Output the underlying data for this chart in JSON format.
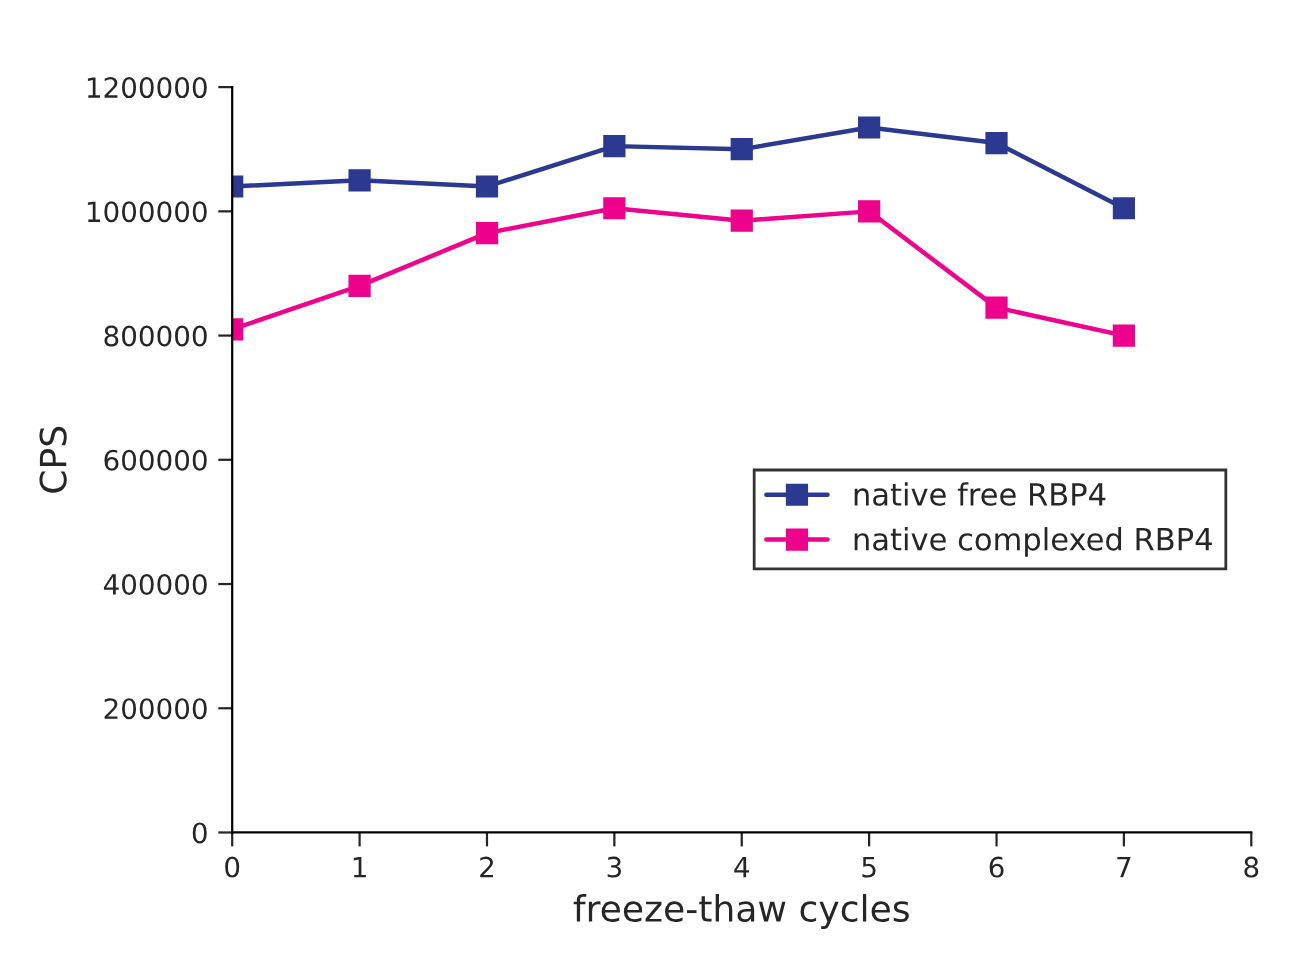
{
  "chart_data": {
    "type": "line",
    "xlabel": "freeze-thaw cycles",
    "ylabel": "CPS",
    "x": [
      0,
      1,
      2,
      3,
      4,
      5,
      6,
      7
    ],
    "series": [
      {
        "name": "native free RBP4",
        "color": "#2b3990",
        "values": [
          1040000,
          1050000,
          1040000,
          1105000,
          1100000,
          1135000,
          1110000,
          1005000
        ]
      },
      {
        "name": "native complexed RBP4",
        "color": "#ec008c",
        "values": [
          810000,
          880000,
          965000,
          1005000,
          985000,
          1000000,
          845000,
          800000
        ]
      }
    ],
    "xlim": [
      0,
      8
    ],
    "xticks": [
      0,
      1,
      2,
      3,
      4,
      5,
      6,
      7,
      8
    ],
    "ylim": [
      0,
      1200000
    ],
    "yticks": [
      0,
      200000,
      400000,
      600000,
      800000,
      1000000,
      1200000
    ],
    "marker": "square",
    "line_style": "solid",
    "grid": false,
    "legend": "right"
  }
}
